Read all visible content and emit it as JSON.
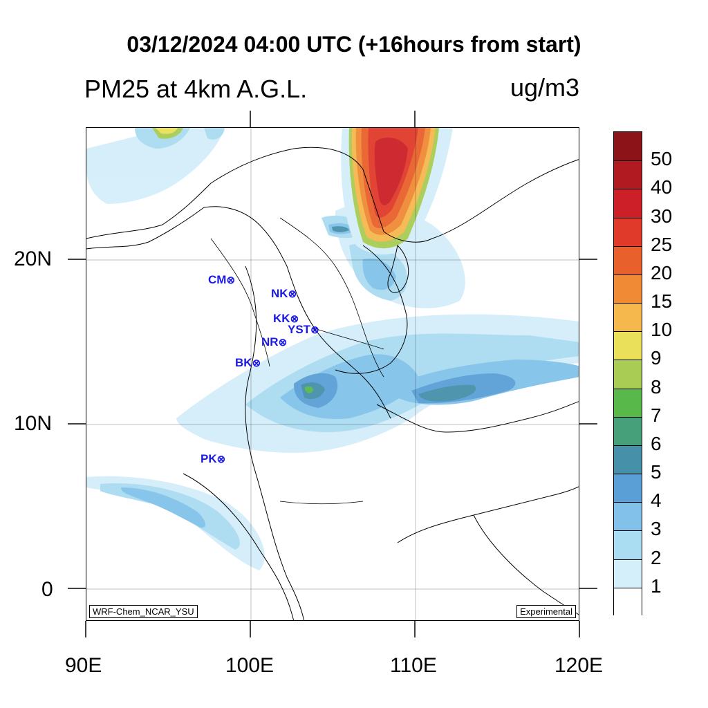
{
  "title": "03/12/2024 04:00 UTC (+16hours from start)",
  "subtitle_left": "PM25 at 4km A.G.L.",
  "subtitle_right": "ug/m3",
  "axes": {
    "lat_labels": [
      "20N",
      "10N",
      "0"
    ],
    "lon_labels": [
      "90E",
      "100E",
      "110E",
      "120E"
    ]
  },
  "credits": {
    "left": "WRF-Chem_NCAR_YSU",
    "right": "Experimental"
  },
  "stations": [
    {
      "name": "CM",
      "symbol": "⊗"
    },
    {
      "name": "NK",
      "symbol": "⊗"
    },
    {
      "name": "KK",
      "symbol": "⊗"
    },
    {
      "name": "YST",
      "symbol": "⊗"
    },
    {
      "name": "NR",
      "symbol": "⊗"
    },
    {
      "name": "BK",
      "symbol": "⊗"
    },
    {
      "name": "PK",
      "symbol": "⊗"
    }
  ],
  "colorbar": {
    "labels": [
      "50",
      "40",
      "30",
      "25",
      "20",
      "15",
      "10",
      "9",
      "8",
      "7",
      "6",
      "5",
      "4",
      "3",
      "2",
      "1"
    ],
    "colors": [
      "#8c1418",
      "#b01a20",
      "#cc1f27",
      "#e03a2a",
      "#e8602c",
      "#f08a35",
      "#f4b84d",
      "#eae05a",
      "#a8cc54",
      "#58b84a",
      "#46a07a",
      "#4690aa",
      "#5aa0d6",
      "#82c2ea",
      "#aadcf2",
      "#d4eefa",
      "#ffffff"
    ]
  }
}
